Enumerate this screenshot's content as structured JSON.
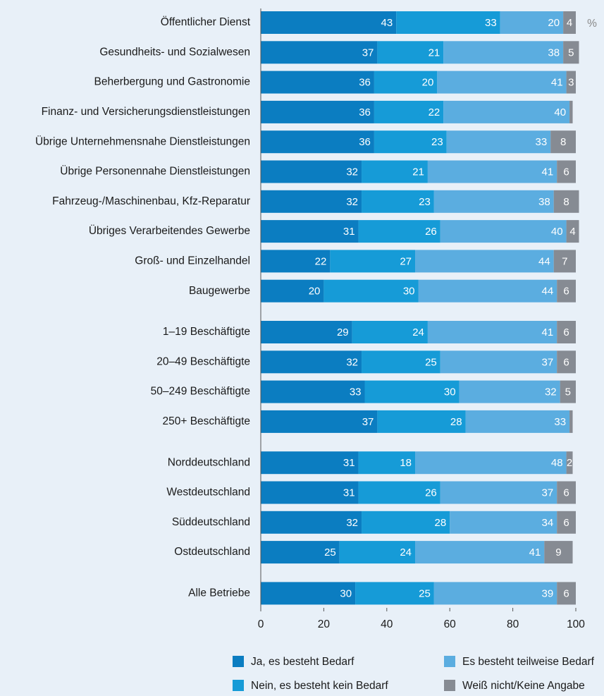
{
  "chart_data": {
    "type": "stacked-bar-horizontal",
    "unit_label": "%",
    "categories": [
      "Öffentlicher Dienst",
      "Gesundheits- und Sozialwesen",
      "Beherbergung und Gastronomie",
      "Finanz- und Versicherungsdienstleistungen",
      "Übrige Unternehmensnahe Dienstleistungen",
      "Übrige Personennahe Dienstleistungen",
      "Fahrzeug-/Maschinenbau, Kfz-Reparatur",
      "Übriges Verarbeitendes Gewerbe",
      "Groß- und Einzelhandel",
      "Baugewerbe",
      "1–19 Beschäftigte",
      "20–49 Beschäftigte",
      "50–249 Beschäftigte",
      "250+ Beschäftigte",
      "Norddeutschland",
      "Westdeutschland",
      "Süddeutschland",
      "Ostdeutschland",
      "Alle Betriebe"
    ],
    "series": [
      {
        "name": "Ja, es besteht Bedarf",
        "color": "#0b7dc1",
        "values": [
          43,
          37,
          36,
          36,
          36,
          32,
          32,
          31,
          22,
          20,
          29,
          32,
          33,
          37,
          31,
          31,
          32,
          25,
          30
        ]
      },
      {
        "name": "Nein, es besteht kein Bedarf",
        "color": "#169bd7",
        "values": [
          33,
          21,
          20,
          22,
          23,
          21,
          23,
          26,
          27,
          30,
          24,
          25,
          30,
          28,
          18,
          26,
          28,
          24,
          25
        ]
      },
      {
        "name": "Es besteht teilweise Bedarf",
        "color": "#5badE0",
        "values": [
          20,
          38,
          41,
          40,
          33,
          41,
          38,
          40,
          44,
          44,
          41,
          37,
          32,
          33,
          48,
          37,
          34,
          41,
          39
        ]
      },
      {
        "name": "Weiß nicht/Keine Angabe",
        "color": "#868b93",
        "values": [
          4,
          5,
          3,
          1,
          8,
          6,
          8,
          4,
          7,
          6,
          6,
          6,
          5,
          1,
          2,
          6,
          6,
          9,
          6
        ],
        "value_labels": [
          "4",
          "5",
          "3",
          null,
          "8",
          "6",
          "8",
          "4",
          "7",
          "6",
          "6",
          "6",
          "5",
          null,
          "2",
          "6",
          "6",
          "9",
          "6"
        ]
      }
    ],
    "xlim": [
      0,
      100
    ],
    "xticks": [
      0,
      20,
      40,
      60,
      80,
      100
    ]
  }
}
